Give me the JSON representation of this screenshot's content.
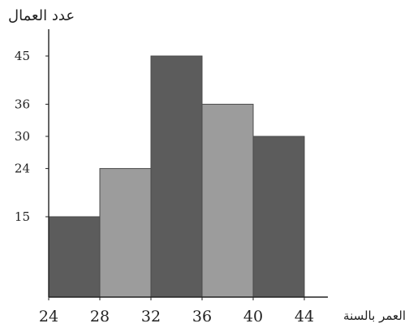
{
  "chart_data": {
    "type": "bar",
    "bins": [
      {
        "from": 24,
        "to": 28,
        "value": 15,
        "shade": "dark"
      },
      {
        "from": 28,
        "to": 32,
        "value": 24,
        "shade": "light"
      },
      {
        "from": 32,
        "to": 36,
        "value": 45,
        "shade": "dark"
      },
      {
        "from": 36,
        "to": 40,
        "value": 36,
        "shade": "light"
      },
      {
        "from": 40,
        "to": 44,
        "value": 30,
        "shade": "dark"
      }
    ],
    "x_ticks": [
      "24",
      "28",
      "32",
      "36",
      "40",
      "44"
    ],
    "y_ticks": [
      "15",
      "24",
      "30",
      "36",
      "45"
    ],
    "xlabel": "العمر بالسنة",
    "ylabel": "عدد العمال",
    "xlim": [
      24,
      44
    ],
    "ylim": [
      0,
      50
    ],
    "grid": false,
    "colors": {
      "dark": "#5c5c5c",
      "light": "#9c9c9c",
      "axis": "#222222"
    }
  }
}
